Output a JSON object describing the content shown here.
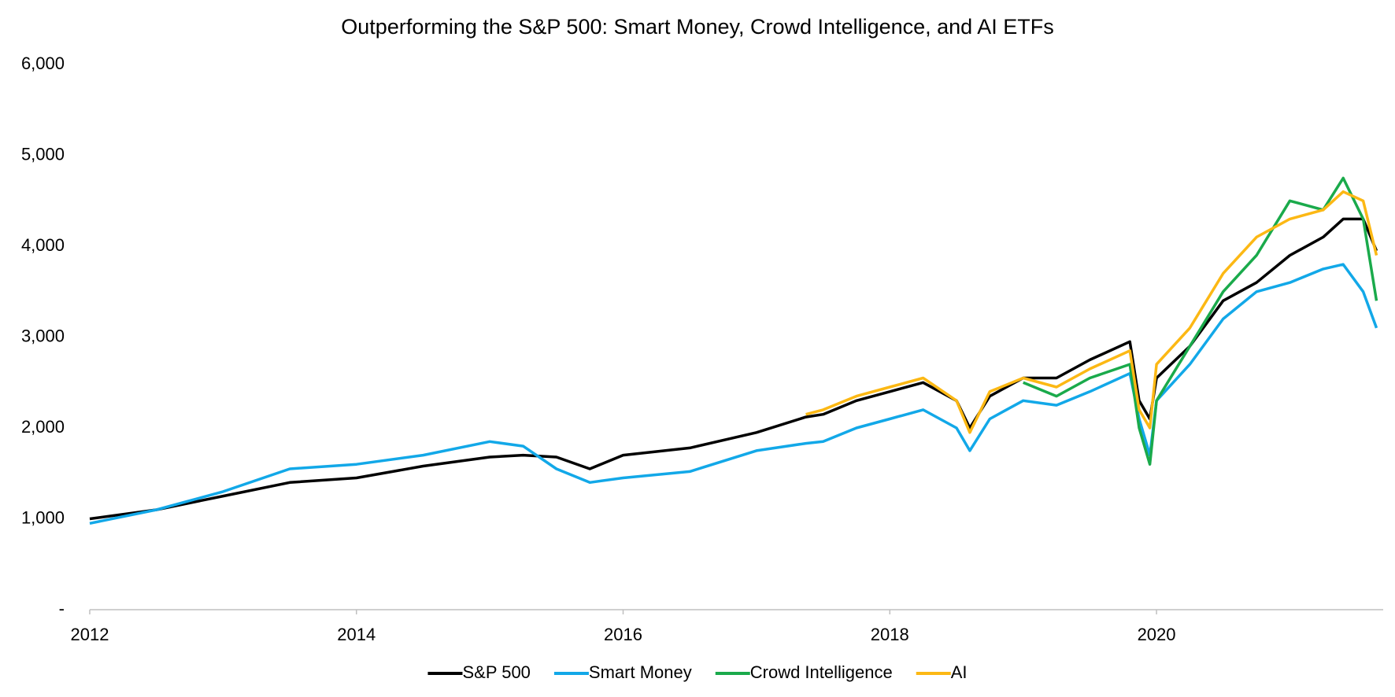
{
  "chart_data": {
    "type": "line",
    "title": "Outperforming the S&P 500: Smart Money, Crowd Intelligence, and AI ETFs",
    "x": [
      2012,
      2012.5,
      2013,
      2013.5,
      2014,
      2014.5,
      2015,
      2015.25,
      2015.5,
      2015.75,
      2016,
      2016.5,
      2017,
      2017.37,
      2017.5,
      2017.75,
      2018,
      2018.25,
      2018.5,
      2018.6,
      2018.75,
      2019,
      2019.25,
      2019.5,
      2019.8,
      2019.87,
      2019.95,
      2020,
      2020.25,
      2020.5,
      2020.75,
      2021,
      2021.25,
      2021.4,
      2021.55,
      2021.65
    ],
    "series": [
      {
        "name": "S&P 500",
        "color": "#000000",
        "values": [
          1000,
          1100,
          1250,
          1400,
          1450,
          1580,
          1680,
          1700,
          1680,
          1550,
          1700,
          1780,
          1950,
          2120,
          2150,
          2300,
          2400,
          2500,
          2300,
          2000,
          2350,
          2550,
          2550,
          2750,
          2950,
          2300,
          2100,
          2550,
          2900,
          3400,
          3600,
          3900,
          4100,
          4300,
          4300,
          3950
        ]
      },
      {
        "name": "Smart Money",
        "color": "#12a8e8",
        "values": [
          950,
          1100,
          1300,
          1550,
          1600,
          1700,
          1850,
          1800,
          1550,
          1400,
          1450,
          1520,
          1750,
          1830,
          1850,
          2000,
          2100,
          2200,
          2000,
          1750,
          2100,
          2300,
          2250,
          2400,
          2600,
          2100,
          1700,
          2300,
          2700,
          3200,
          3500,
          3600,
          3750,
          3800,
          3500,
          3100
        ]
      },
      {
        "name": "Crowd Intelligence",
        "color": "#1aaa4b",
        "values": [
          null,
          null,
          null,
          null,
          null,
          null,
          null,
          null,
          null,
          null,
          null,
          null,
          null,
          null,
          null,
          null,
          null,
          null,
          null,
          null,
          null,
          2500,
          2350,
          2550,
          2700,
          2000,
          1600,
          2300,
          2900,
          3500,
          3900,
          4500,
          4400,
          4750,
          4300,
          3400
        ]
      },
      {
        "name": "AI",
        "color": "#fcb814",
        "values": [
          null,
          null,
          null,
          null,
          null,
          null,
          null,
          null,
          null,
          null,
          null,
          null,
          null,
          2150,
          2200,
          2350,
          2450,
          2550,
          2300,
          1950,
          2400,
          2550,
          2450,
          2650,
          2850,
          2200,
          2000,
          2700,
          3100,
          3700,
          4100,
          4300,
          4400,
          4600,
          4500,
          3900
        ]
      }
    ],
    "xlim": [
      2012,
      2021.7
    ],
    "xticks": [
      2012,
      2014,
      2016,
      2018,
      2020
    ],
    "ylim": [
      0,
      6000
    ],
    "yticks": [
      {
        "value": 0,
        "label": "-"
      },
      {
        "value": 1000,
        "label": "1,000"
      },
      {
        "value": 2000,
        "label": "2,000"
      },
      {
        "value": 3000,
        "label": "3,000"
      },
      {
        "value": 4000,
        "label": "4,000"
      },
      {
        "value": 5000,
        "label": "5,000"
      },
      {
        "value": 6000,
        "label": "6,000"
      }
    ],
    "grid": false,
    "legend": "bottom"
  }
}
